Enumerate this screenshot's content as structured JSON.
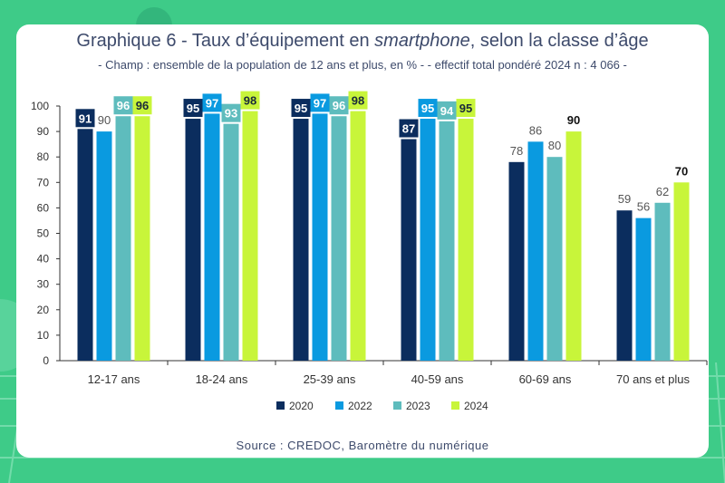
{
  "chart_data": {
    "type": "bar",
    "title_pre": "Graphique 6 - Taux d’équipement en ",
    "title_em": "smartphone",
    "title_post": ", selon la classe d’âge",
    "subtitle": "- Champ : ensemble de la population de 12 ans et plus, en % - - effectif total pondéré 2024 n : 4 066 -",
    "categories": [
      "12-17 ans",
      "18-24 ans",
      "25-39 ans",
      "40-59 ans",
      "60-69 ans",
      "70 ans et plus"
    ],
    "series": [
      {
        "name": "2020",
        "color": "#0b2d5e",
        "values": [
          91,
          95,
          95,
          87,
          78,
          59
        ]
      },
      {
        "name": "2022",
        "color": "#0a9ae0",
        "values": [
          90,
          97,
          97,
          95,
          86,
          56
        ]
      },
      {
        "name": "2023",
        "color": "#5ebcbd",
        "values": [
          96,
          93,
          96,
          94,
          80,
          62
        ]
      },
      {
        "name": "2024",
        "color": "#c8f53a",
        "values": [
          96,
          98,
          98,
          95,
          90,
          70
        ]
      }
    ],
    "ylim": [
      0,
      100
    ],
    "yticks": [
      0,
      10,
      20,
      30,
      40,
      50,
      60,
      70,
      80,
      90,
      100
    ],
    "grid": false,
    "legend_position": "bottom",
    "source": "Source : CREDOC, Baromètre du numérique"
  },
  "background_color": "#3ecb88"
}
